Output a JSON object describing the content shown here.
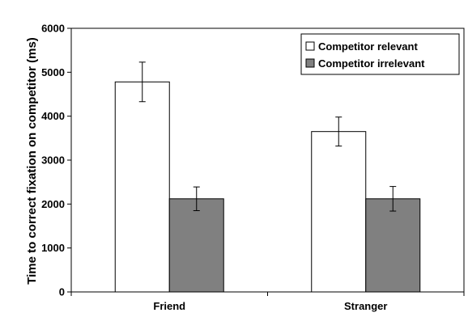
{
  "chart_data": {
    "type": "bar",
    "title": "",
    "xlabel": "",
    "ylabel": "Time to correct fixation on competitor (ms)",
    "ylim": [
      0,
      6000
    ],
    "yticks": [
      0,
      1000,
      2000,
      3000,
      4000,
      5000,
      6000
    ],
    "categories": [
      "Friend",
      "Stranger"
    ],
    "grid": false,
    "legend_position": "top-right",
    "series": [
      {
        "name": "Competitor relevant",
        "color": "#ffffff",
        "values": [
          4780,
          3650
        ],
        "error": [
          450,
          330
        ]
      },
      {
        "name": "Competitor irrelevant",
        "color": "#808080",
        "values": [
          2120,
          2120
        ],
        "error": [
          270,
          280
        ]
      }
    ]
  }
}
